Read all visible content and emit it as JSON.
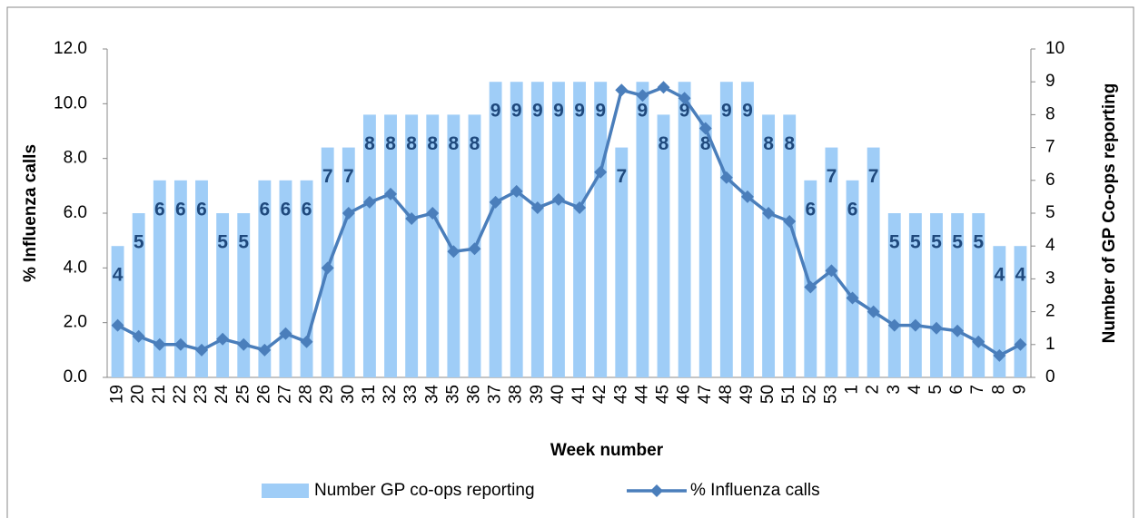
{
  "chart_data": {
    "type": "combo",
    "x_label": "Week number",
    "y_label": "% Influenza calls",
    "y2_label": "Number of GP Co-ops reporting",
    "categories": [
      "19",
      "20",
      "21",
      "22",
      "23",
      "24",
      "25",
      "26",
      "27",
      "28",
      "29",
      "30",
      "31",
      "32",
      "33",
      "34",
      "35",
      "36",
      "37",
      "38",
      "39",
      "40",
      "41",
      "42",
      "43",
      "44",
      "45",
      "46",
      "47",
      "48",
      "49",
      "50",
      "51",
      "52",
      "53",
      "1",
      "2",
      "3",
      "4",
      "5",
      "6",
      "7",
      "8",
      "9"
    ],
    "series": [
      {
        "name": "Number GP co-ops reporting",
        "type": "bar",
        "axis": "y2",
        "color": "#9fcdf7",
        "label_color": "#1f497d",
        "values": [
          4,
          5,
          6,
          6,
          6,
          5,
          5,
          6,
          6,
          6,
          7,
          7,
          8,
          8,
          8,
          8,
          8,
          8,
          9,
          9,
          9,
          9,
          9,
          9,
          7,
          9,
          8,
          9,
          8,
          9,
          9,
          8,
          8,
          6,
          7,
          6,
          7,
          5,
          5,
          5,
          5,
          5,
          4,
          4
        ]
      },
      {
        "name": "% Influenza calls",
        "type": "line",
        "axis": "y",
        "color": "#4a7ebb",
        "values": [
          1.9,
          1.5,
          1.2,
          1.2,
          1.0,
          1.4,
          1.2,
          1.0,
          1.6,
          1.3,
          4.0,
          6.0,
          6.4,
          6.7,
          5.8,
          6.0,
          4.6,
          4.7,
          6.4,
          6.8,
          6.2,
          6.5,
          6.2,
          7.5,
          10.5,
          10.3,
          10.6,
          10.2,
          9.1,
          7.3,
          6.6,
          6.0,
          5.7,
          3.3,
          3.9,
          2.9,
          2.4,
          1.9,
          1.9,
          1.8,
          1.7,
          1.3,
          0.8,
          1.2
        ]
      }
    ],
    "ylim": [
      0,
      12
    ],
    "yticks": [
      {
        "value": 0,
        "label": "0.0"
      },
      {
        "value": 2,
        "label": "2.0"
      },
      {
        "value": 4,
        "label": "4.0"
      },
      {
        "value": 6,
        "label": "6.0"
      },
      {
        "value": 8,
        "label": "8.0"
      },
      {
        "value": 10,
        "label": "10.0"
      },
      {
        "value": 12,
        "label": "12.0"
      }
    ],
    "y2lim": [
      0,
      10
    ],
    "y2ticks": [
      0,
      1,
      2,
      3,
      4,
      5,
      6,
      7,
      8,
      9,
      10
    ],
    "legend": "bottom"
  }
}
